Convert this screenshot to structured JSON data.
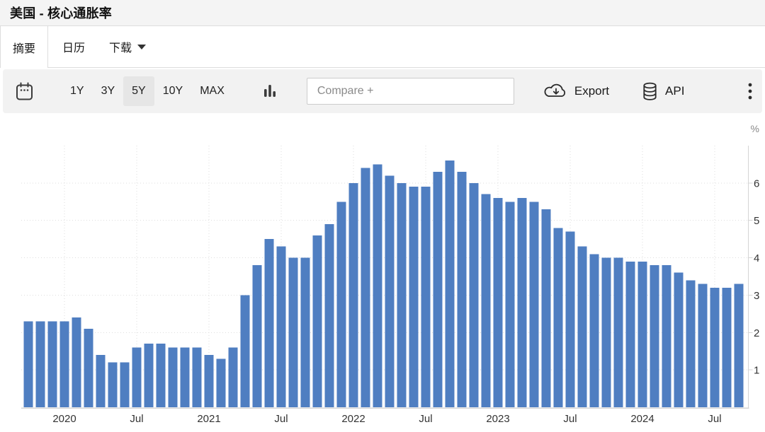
{
  "header": {
    "title": "美国 - 核心通胀率"
  },
  "tabs": [
    {
      "label": "摘要",
      "active": true
    },
    {
      "label": "日历",
      "active": false
    },
    {
      "label": "下载",
      "active": false,
      "has_caret": true
    }
  ],
  "toolbar": {
    "ranges": [
      "1Y",
      "3Y",
      "5Y",
      "10Y",
      "MAX"
    ],
    "selected_range": "5Y",
    "compare_placeholder": "Compare +",
    "export_label": "Export",
    "api_label": "API"
  },
  "chart_data": {
    "type": "bar",
    "title": "美国 - 核心通胀率",
    "unit_label": "%",
    "x": [
      "2019-10",
      "2019-11",
      "2019-12",
      "2020-01",
      "2020-02",
      "2020-03",
      "2020-04",
      "2020-05",
      "2020-06",
      "2020-07",
      "2020-08",
      "2020-09",
      "2020-10",
      "2020-11",
      "2020-12",
      "2021-01",
      "2021-02",
      "2021-03",
      "2021-04",
      "2021-05",
      "2021-06",
      "2021-07",
      "2021-08",
      "2021-09",
      "2021-10",
      "2021-11",
      "2021-12",
      "2022-01",
      "2022-02",
      "2022-03",
      "2022-04",
      "2022-05",
      "2022-06",
      "2022-07",
      "2022-08",
      "2022-09",
      "2022-10",
      "2022-11",
      "2022-12",
      "2023-01",
      "2023-02",
      "2023-03",
      "2023-04",
      "2023-05",
      "2023-06",
      "2023-07",
      "2023-08",
      "2023-09",
      "2023-10",
      "2023-11",
      "2023-12",
      "2024-01",
      "2024-02",
      "2024-03",
      "2024-04",
      "2024-05",
      "2024-06",
      "2024-07",
      "2024-08",
      "2024-09"
    ],
    "values": [
      2.3,
      2.3,
      2.3,
      2.3,
      2.4,
      2.1,
      1.4,
      1.2,
      1.2,
      1.6,
      1.7,
      1.7,
      1.6,
      1.6,
      1.6,
      1.4,
      1.3,
      1.6,
      3.0,
      3.8,
      4.5,
      4.3,
      4.0,
      4.0,
      4.6,
      4.9,
      5.5,
      6.0,
      6.4,
      6.5,
      6.2,
      6.0,
      5.9,
      5.9,
      6.3,
      6.6,
      6.3,
      6.0,
      5.7,
      5.6,
      5.5,
      5.6,
      5.5,
      5.3,
      4.8,
      4.7,
      4.3,
      4.1,
      4.0,
      4.0,
      3.9,
      3.9,
      3.8,
      3.8,
      3.6,
      3.4,
      3.3,
      3.2,
      3.2,
      3.3
    ],
    "ylim": [
      0,
      7
    ],
    "y_ticks": [
      1,
      2,
      3,
      4,
      5,
      6
    ],
    "x_ticks": [
      {
        "index": 3,
        "label": "2020"
      },
      {
        "index": 9,
        "label": "Jul"
      },
      {
        "index": 15,
        "label": "2021"
      },
      {
        "index": 21,
        "label": "Jul"
      },
      {
        "index": 27,
        "label": "2022"
      },
      {
        "index": 33,
        "label": "Jul"
      },
      {
        "index": 39,
        "label": "2023"
      },
      {
        "index": 45,
        "label": "Jul"
      },
      {
        "index": 51,
        "label": "2024"
      },
      {
        "index": 57,
        "label": "Jul"
      }
    ],
    "grid": true,
    "legend_position": "none",
    "bar_color": "#4f7ec1",
    "axis_color": "#d4d4d4",
    "grid_color": "#dedede",
    "tick_label_color": "#333333",
    "unit_label_color": "#888888"
  }
}
